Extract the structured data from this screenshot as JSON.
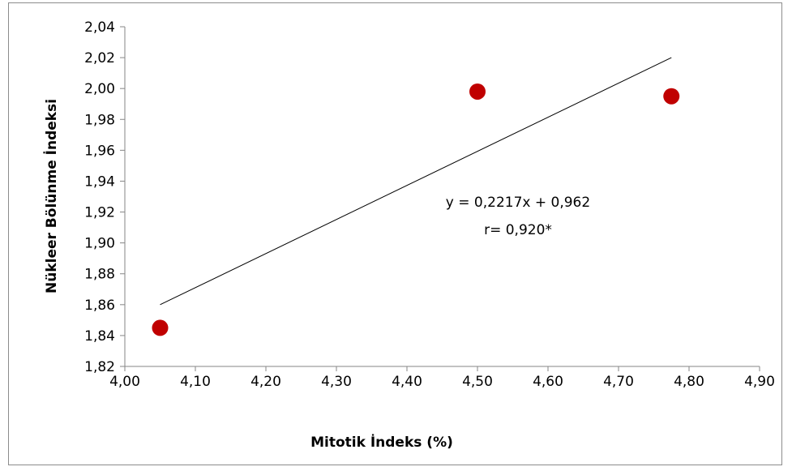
{
  "chart_data": {
    "type": "scatter",
    "xlabel": "Mitotik İndeks (%)",
    "ylabel": "Nükleer Bölünme İndeksi",
    "xlim": [
      4.0,
      4.9
    ],
    "ylim": [
      1.82,
      2.04
    ],
    "x_ticks": [
      "4,00",
      "4,10",
      "4,20",
      "4,30",
      "4,40",
      "4,50",
      "4,60",
      "4,70",
      "4,80",
      "4,90"
    ],
    "y_ticks": [
      "1,82",
      "1,84",
      "1,86",
      "1,88",
      "1,90",
      "1,92",
      "1,94",
      "1,96",
      "1,98",
      "2,00",
      "2,02",
      "2,04"
    ],
    "x_tick_values": [
      4.0,
      4.1,
      4.2,
      4.3,
      4.4,
      4.5,
      4.6,
      4.7,
      4.8,
      4.9
    ],
    "y_tick_values": [
      1.82,
      1.84,
      1.86,
      1.88,
      1.9,
      1.92,
      1.94,
      1.96,
      1.98,
      2.0,
      2.02,
      2.04
    ],
    "points": [
      {
        "x": 4.05,
        "y": 1.845
      },
      {
        "x": 4.5,
        "y": 1.998
      },
      {
        "x": 4.775,
        "y": 1.995
      }
    ],
    "trendline": {
      "x": [
        4.05,
        4.775
      ],
      "y": [
        1.86,
        2.02
      ]
    },
    "equation": "y = 0,2217x + 0,962",
    "correlation": "r= 0,920*",
    "marker_color": "#c00000",
    "line_color": "#000000",
    "grid": false,
    "legend": "none"
  }
}
